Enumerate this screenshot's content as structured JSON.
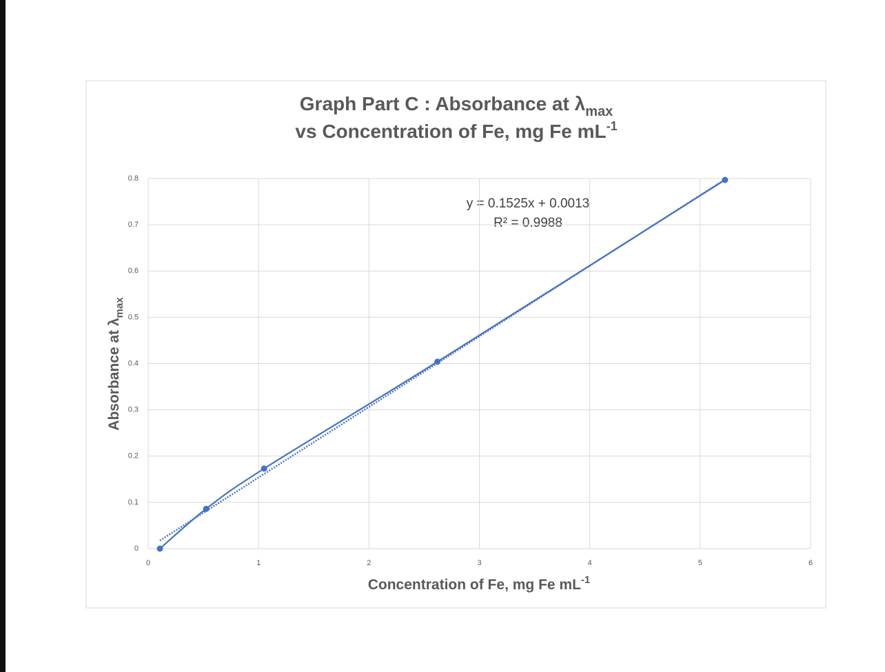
{
  "chart_data": {
    "type": "scatter_smooth",
    "title": {
      "line1": "Graph Part C : Absorbance at λ",
      "line1_sub": "max",
      "line2": "vs   Concentration of Fe, mg Fe mL",
      "line2_sup": "-1"
    },
    "xlabel": {
      "text": "Concentration of Fe, mg Fe mL",
      "sup": "-1"
    },
    "ylabel": {
      "text": "Absorbance at λ",
      "sub": "max"
    },
    "series": [
      {
        "name": "Absorbance",
        "color": "#4472c4",
        "x": [
          0.106,
          0.525,
          1.05,
          2.62,
          5.225
        ],
        "values": [
          0,
          0.086,
          0.173,
          0.404,
          0.797
        ]
      }
    ],
    "trendline": {
      "slope": 0.1525,
      "intercept": 0.0013,
      "equation": "y = 0.1525x + 0.0013",
      "r2_label": "R² = 0.9988"
    },
    "xlim": [
      0,
      6
    ],
    "xticks": [
      0,
      1,
      2,
      3,
      4,
      5,
      6
    ],
    "ylim": [
      0,
      0.8
    ],
    "yticks": [
      0,
      0.1,
      0.2,
      0.3,
      0.4,
      0.5,
      0.6,
      0.7,
      0.8
    ],
    "grid": true
  }
}
